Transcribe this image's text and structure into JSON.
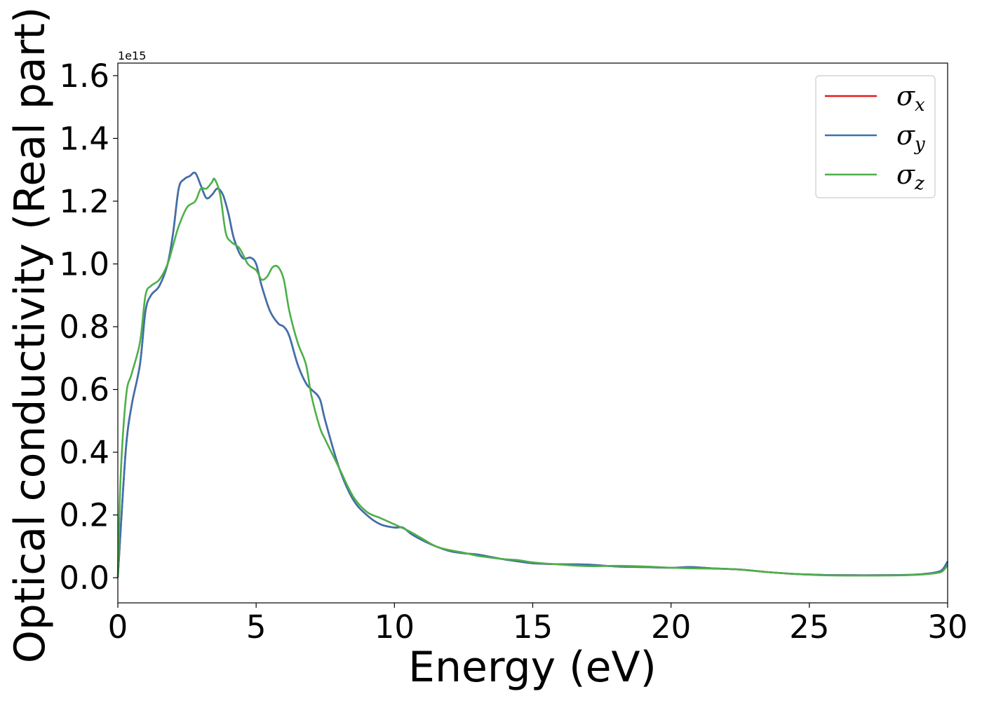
{
  "chart_data": {
    "type": "line",
    "xlabel": "Energy (eV)",
    "ylabel": "Optical conductivity (Real part)",
    "y_offset_label": "1e15",
    "y_scale": 1000000000000000.0,
    "xlim": [
      0,
      30
    ],
    "ylim": [
      -0.08,
      1.64
    ],
    "x_ticks": [
      0,
      5,
      10,
      15,
      20,
      25,
      30
    ],
    "x_tick_labels": [
      "0",
      "5",
      "10",
      "15",
      "20",
      "25",
      "30"
    ],
    "y_ticks": [
      0.0,
      0.2,
      0.4,
      0.6,
      0.8,
      1.0,
      1.2,
      1.4,
      1.6
    ],
    "y_tick_labels": [
      "0.0",
      "0.2",
      "0.4",
      "0.6",
      "0.8",
      "1.0",
      "1.2",
      "1.4",
      "1.6"
    ],
    "grid": false,
    "legend_position": "top-right",
    "series": [
      {
        "name": "σ",
        "subscript": "x",
        "color": "#e41a1c",
        "x": [
          0,
          0.1,
          0.3,
          0.5,
          0.8,
          1.0,
          1.2,
          1.5,
          1.8,
          2.0,
          2.2,
          2.4,
          2.6,
          2.8,
          3.0,
          3.2,
          3.4,
          3.6,
          3.8,
          4.0,
          4.2,
          4.5,
          4.8,
          5.0,
          5.2,
          5.5,
          5.8,
          6.0,
          6.2,
          6.5,
          6.8,
          7.0,
          7.3,
          7.5,
          8.0,
          8.5,
          9.0,
          9.5,
          10.0,
          10.3,
          10.6,
          11.0,
          11.5,
          12.0,
          12.5,
          13.0,
          13.5,
          14.0,
          14.5,
          15.0,
          16.0,
          17.0,
          18.0,
          19.0,
          20.0,
          20.7,
          21.5,
          22.5,
          23.5,
          24.5,
          25.5,
          26.5,
          27.5,
          28.5,
          29.0,
          29.5,
          29.8,
          30.0
        ],
        "values": [
          0.0,
          0.15,
          0.42,
          0.55,
          0.68,
          0.85,
          0.9,
          0.93,
          1.0,
          1.1,
          1.24,
          1.27,
          1.28,
          1.29,
          1.25,
          1.21,
          1.22,
          1.24,
          1.22,
          1.16,
          1.08,
          1.02,
          1.02,
          1.0,
          0.93,
          0.85,
          0.81,
          0.8,
          0.77,
          0.68,
          0.62,
          0.6,
          0.57,
          0.5,
          0.35,
          0.25,
          0.2,
          0.17,
          0.16,
          0.16,
          0.14,
          0.12,
          0.1,
          0.085,
          0.078,
          0.074,
          0.066,
          0.058,
          0.052,
          0.046,
          0.043,
          0.042,
          0.036,
          0.034,
          0.032,
          0.034,
          0.03,
          0.026,
          0.018,
          0.012,
          0.009,
          0.008,
          0.008,
          0.009,
          0.011,
          0.016,
          0.025,
          0.052
        ]
      },
      {
        "name": "σ",
        "subscript": "y",
        "color": "#3a72ad",
        "x": [
          0,
          0.1,
          0.3,
          0.5,
          0.8,
          1.0,
          1.2,
          1.5,
          1.8,
          2.0,
          2.2,
          2.4,
          2.6,
          2.8,
          3.0,
          3.2,
          3.4,
          3.6,
          3.8,
          4.0,
          4.2,
          4.5,
          4.8,
          5.0,
          5.2,
          5.5,
          5.8,
          6.0,
          6.2,
          6.5,
          6.8,
          7.0,
          7.3,
          7.5,
          8.0,
          8.5,
          9.0,
          9.5,
          10.0,
          10.3,
          10.6,
          11.0,
          11.5,
          12.0,
          12.5,
          13.0,
          13.5,
          14.0,
          14.5,
          15.0,
          16.0,
          17.0,
          18.0,
          19.0,
          20.0,
          20.7,
          21.5,
          22.5,
          23.5,
          24.5,
          25.5,
          26.5,
          27.5,
          28.5,
          29.0,
          29.5,
          29.8,
          30.0
        ],
        "values": [
          0.0,
          0.15,
          0.42,
          0.55,
          0.68,
          0.85,
          0.9,
          0.93,
          1.0,
          1.1,
          1.24,
          1.27,
          1.28,
          1.29,
          1.25,
          1.21,
          1.22,
          1.24,
          1.22,
          1.16,
          1.08,
          1.02,
          1.02,
          1.0,
          0.93,
          0.85,
          0.81,
          0.8,
          0.77,
          0.68,
          0.62,
          0.6,
          0.57,
          0.5,
          0.35,
          0.25,
          0.2,
          0.17,
          0.16,
          0.16,
          0.14,
          0.12,
          0.1,
          0.085,
          0.078,
          0.074,
          0.066,
          0.058,
          0.052,
          0.046,
          0.043,
          0.042,
          0.036,
          0.034,
          0.032,
          0.034,
          0.03,
          0.026,
          0.018,
          0.012,
          0.009,
          0.008,
          0.008,
          0.009,
          0.011,
          0.016,
          0.025,
          0.052
        ]
      },
      {
        "name": "σ",
        "subscript": "z",
        "color": "#4daf4a",
        "x": [
          0,
          0.1,
          0.3,
          0.5,
          0.8,
          1.0,
          1.2,
          1.5,
          1.8,
          2.0,
          2.2,
          2.5,
          2.8,
          3.0,
          3.2,
          3.4,
          3.5,
          3.7,
          3.9,
          4.1,
          4.4,
          4.7,
          5.0,
          5.2,
          5.4,
          5.6,
          5.8,
          6.0,
          6.2,
          6.5,
          6.8,
          7.0,
          7.3,
          7.5,
          8.0,
          8.5,
          9.0,
          9.5,
          10.0,
          10.5,
          11.0,
          11.5,
          12.0,
          12.5,
          13.0,
          13.5,
          14.0,
          14.5,
          15.0,
          16.0,
          17.0,
          18.0,
          19.0,
          20.0,
          20.7,
          21.5,
          22.5,
          23.5,
          24.5,
          25.5,
          26.5,
          27.5,
          28.5,
          29.0,
          29.5,
          29.8,
          30.0
        ],
        "values": [
          0.0,
          0.32,
          0.58,
          0.65,
          0.75,
          0.9,
          0.93,
          0.95,
          1.0,
          1.06,
          1.12,
          1.18,
          1.2,
          1.24,
          1.24,
          1.26,
          1.27,
          1.22,
          1.1,
          1.07,
          1.05,
          1.0,
          0.98,
          0.95,
          0.96,
          0.99,
          0.99,
          0.95,
          0.85,
          0.75,
          0.68,
          0.58,
          0.48,
          0.44,
          0.35,
          0.26,
          0.21,
          0.19,
          0.17,
          0.15,
          0.125,
          0.1,
          0.088,
          0.08,
          0.07,
          0.064,
          0.059,
          0.056,
          0.049,
          0.042,
          0.037,
          0.038,
          0.036,
          0.032,
          0.03,
          0.029,
          0.026,
          0.018,
          0.012,
          0.008,
          0.007,
          0.007,
          0.008,
          0.01,
          0.014,
          0.02,
          0.04
        ]
      }
    ]
  }
}
